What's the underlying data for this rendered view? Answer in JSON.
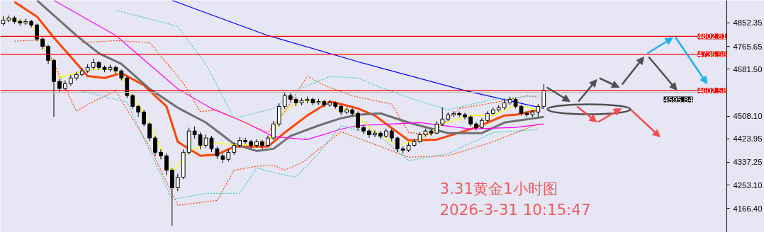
{
  "chart_data": {
    "type": "candlestick",
    "categories": [
      null,
      null,
      null,
      null,
      null,
      null,
      null,
      null,
      null,
      null,
      null,
      null,
      null,
      null,
      null,
      null,
      null,
      null,
      null,
      null,
      null,
      null,
      null,
      null,
      null,
      null,
      null,
      null,
      null,
      null,
      null,
      null,
      null,
      null,
      null,
      null,
      null,
      null,
      null,
      null,
      null,
      null,
      null,
      null,
      null,
      null,
      null,
      null,
      null,
      null,
      null,
      null,
      null,
      null,
      null,
      null,
      null,
      null,
      null,
      null,
      null,
      null,
      null,
      null,
      null,
      null,
      null,
      null,
      null,
      null,
      null,
      null,
      null,
      null,
      null,
      null,
      null,
      null,
      null,
      null,
      null,
      null,
      null,
      null,
      null,
      null,
      null,
      null,
      null,
      null,
      null,
      null,
      null,
      null,
      null,
      null,
      null,
      null,
      null,
      null,
      null,
      null,
      null,
      null,
      null,
      null,
      null,
      null,
      null,
      null,
      null,
      null,
      null,
      null,
      null,
      null,
      null,
      null,
      null,
      null,
      null,
      null,
      null,
      null,
      null,
      null,
      null,
      null,
      null
    ],
    "ohlc": [
      [
        4850,
        4878,
        4842,
        4863
      ],
      [
        4863,
        4880,
        4855,
        4871
      ],
      [
        4871,
        4878,
        4850,
        4858
      ],
      [
        4858,
        4866,
        4842,
        4852
      ],
      [
        4852,
        4868,
        4845,
        4858
      ],
      [
        4858,
        4864,
        4836,
        4845
      ],
      [
        4845,
        4850,
        4785,
        4793
      ],
      [
        4793,
        4800,
        4755,
        4766
      ],
      [
        4766,
        4772,
        4700,
        4714
      ],
      [
        4714,
        4720,
        4505,
        4636
      ],
      [
        4636,
        4645,
        4598,
        4610
      ],
      [
        4610,
        4640,
        4602,
        4628
      ],
      [
        4628,
        4660,
        4620,
        4649
      ],
      [
        4649,
        4672,
        4640,
        4662
      ],
      [
        4662,
        4685,
        4655,
        4675
      ],
      [
        4675,
        4700,
        4668,
        4688
      ],
      [
        4688,
        4720,
        4680,
        4706
      ],
      [
        4706,
        4712,
        4678,
        4688
      ],
      [
        4688,
        4695,
        4670,
        4680
      ],
      [
        4680,
        4698,
        4672,
        4688
      ],
      [
        4688,
        4695,
        4665,
        4675
      ],
      [
        4675,
        4680,
        4640,
        4649
      ],
      [
        4649,
        4655,
        4575,
        4584
      ],
      [
        4584,
        4590,
        4535,
        4544
      ],
      [
        4544,
        4550,
        4505,
        4523
      ],
      [
        4523,
        4530,
        4470,
        4479
      ],
      [
        4479,
        4485,
        4415,
        4427
      ],
      [
        4427,
        4435,
        4360,
        4374
      ],
      [
        4374,
        4385,
        4348,
        4361
      ],
      [
        4361,
        4370,
        4290,
        4308
      ],
      [
        4308,
        4315,
        4102,
        4243
      ],
      [
        4243,
        4295,
        4230,
        4282
      ],
      [
        4282,
        4385,
        4275,
        4374
      ],
      [
        4374,
        4465,
        4365,
        4453
      ],
      [
        4453,
        4470,
        4425,
        4439
      ],
      [
        4439,
        4448,
        4385,
        4400
      ],
      [
        4400,
        4440,
        4390,
        4427
      ],
      [
        4427,
        4435,
        4375,
        4387
      ],
      [
        4387,
        4395,
        4350,
        4361
      ],
      [
        4361,
        4370,
        4335,
        4348
      ],
      [
        4348,
        4385,
        4340,
        4374
      ],
      [
        4374,
        4410,
        4365,
        4400
      ],
      [
        4400,
        4430,
        4392,
        4418
      ],
      [
        4418,
        4428,
        4405,
        4413
      ],
      [
        4413,
        4420,
        4390,
        4400
      ],
      [
        4400,
        4422,
        4392,
        4413
      ],
      [
        4413,
        4420,
        4385,
        4400
      ],
      [
        4400,
        4436,
        4395,
        4427
      ],
      [
        4427,
        4490,
        4420,
        4479
      ],
      [
        4479,
        4555,
        4470,
        4544
      ],
      [
        4544,
        4595,
        4535,
        4584
      ],
      [
        4584,
        4592,
        4560,
        4570
      ],
      [
        4570,
        4578,
        4545,
        4557
      ],
      [
        4557,
        4575,
        4548,
        4565
      ],
      [
        4565,
        4580,
        4555,
        4570
      ],
      [
        4570,
        4576,
        4548,
        4557
      ],
      [
        4557,
        4572,
        4550,
        4562
      ],
      [
        4562,
        4568,
        4540,
        4549
      ],
      [
        4549,
        4566,
        4542,
        4557
      ],
      [
        4557,
        4562,
        4535,
        4544
      ],
      [
        4544,
        4550,
        4512,
        4523
      ],
      [
        4523,
        4540,
        4515,
        4531
      ],
      [
        4531,
        4538,
        4508,
        4518
      ],
      [
        4518,
        4525,
        4455,
        4466
      ],
      [
        4466,
        4475,
        4442,
        4453
      ],
      [
        4453,
        4460,
        4428,
        4439
      ],
      [
        4439,
        4455,
        4430,
        4445
      ],
      [
        4445,
        4452,
        4424,
        4434
      ],
      [
        4434,
        4462,
        4428,
        4453
      ],
      [
        4453,
        4460,
        4415,
        4427
      ],
      [
        4427,
        4432,
        4375,
        4387
      ],
      [
        4387,
        4395,
        4370,
        4382
      ],
      [
        4382,
        4410,
        4375,
        4400
      ],
      [
        4400,
        4422,
        4395,
        4413
      ],
      [
        4413,
        4448,
        4408,
        4439
      ],
      [
        4439,
        4462,
        4432,
        4453
      ],
      [
        4453,
        4460,
        4436,
        4445
      ],
      [
        4445,
        4490,
        4440,
        4479
      ],
      [
        4479,
        4540,
        4472,
        4497
      ],
      [
        4497,
        4522,
        4490,
        4513
      ],
      [
        4513,
        4526,
        4505,
        4518
      ],
      [
        4518,
        4525,
        4505,
        4513
      ],
      [
        4513,
        4520,
        4496,
        4505
      ],
      [
        4505,
        4510,
        4470,
        4479
      ],
      [
        4479,
        4486,
        4455,
        4466
      ],
      [
        4466,
        4500,
        4460,
        4492
      ],
      [
        4492,
        4526,
        4485,
        4518
      ],
      [
        4518,
        4540,
        4512,
        4531
      ],
      [
        4531,
        4548,
        4525,
        4539
      ],
      [
        4539,
        4568,
        4532,
        4557
      ],
      [
        4557,
        4580,
        4550,
        4570
      ],
      [
        4570,
        4575,
        4536,
        4544
      ],
      [
        4544,
        4550,
        4510,
        4518
      ],
      [
        4518,
        4524,
        4505,
        4513
      ],
      [
        4513,
        4530,
        4505,
        4523
      ],
      [
        4523,
        4552,
        4505,
        4544
      ],
      [
        4544,
        4626,
        4538,
        4602
      ],
      null,
      null,
      null,
      null,
      null,
      null,
      null,
      null,
      null,
      null,
      null,
      null,
      null,
      null,
      null,
      null,
      null,
      null,
      null,
      null,
      null,
      null,
      null,
      null,
      null,
      null,
      null,
      null,
      null,
      null,
      null,
      null
    ],
    "series": [
      {
        "type": "line",
        "color": "#ff4500",
        "values": [
          null,
          null,
          4930,
          null,
          null,
          null,
          4876,
          null,
          null,
          4798,
          null,
          null,
          null,
          null,
          null,
          4656,
          null,
          null,
          4649,
          null,
          null,
          4667,
          null,
          null,
          null,
          4622,
          null,
          null,
          null,
          4544,
          null,
          4413,
          null,
          null,
          null,
          4361,
          null,
          null,
          4366,
          null,
          null,
          4395,
          null,
          null,
          null,
          null,
          null,
          4395,
          null,
          null,
          4447,
          null,
          null,
          null,
          4510,
          null,
          null,
          null,
          4562,
          null,
          4552,
          null,
          null,
          4536,
          null,
          null,
          4510,
          null,
          null,
          null,
          null,
          null,
          4418,
          null,
          null,
          null,
          null,
          4421,
          null,
          null,
          null,
          null,
          null,
          null,
          4466,
          null,
          null,
          null,
          null,
          4510,
          null,
          4513,
          null,
          null,
          null,
          4531,
          null,
          null,
          null,
          null,
          null,
          null,
          null,
          null,
          null,
          null,
          null,
          null,
          null,
          null,
          null,
          null,
          null,
          null,
          null,
          null,
          null,
          null,
          null,
          null,
          null,
          null,
          null,
          null,
          null,
          null,
          null,
          null,
          null
        ]
      },
      {
        "type": "line",
        "color": "#707070",
        "values": [
          null,
          null,
          null,
          null,
          null,
          null,
          4936,
          null,
          null,
          null,
          null,
          null,
          null,
          4806,
          null,
          null,
          null,
          4740,
          null,
          null,
          null,
          4701,
          null,
          null,
          null,
          null,
          4609,
          null,
          null,
          null,
          null,
          4539,
          null,
          null,
          null,
          null,
          4484,
          null,
          null,
          null,
          null,
          4405,
          null,
          null,
          null,
          4379,
          null,
          null,
          4387,
          null,
          null,
          4434,
          null,
          null,
          null,
          null,
          4473,
          null,
          null,
          null,
          4500,
          null,
          null,
          4513,
          null,
          null,
          null,
          4518,
          null,
          null,
          null,
          null,
          4484,
          null,
          null,
          null,
          null,
          null,
          null,
          4445,
          null,
          null,
          null,
          null,
          null,
          4445,
          null,
          null,
          null,
          4484,
          null,
          null,
          null,
          null,
          null,
          null,
          4505,
          null,
          null,
          null,
          null,
          null,
          null,
          null,
          null,
          null,
          null,
          null,
          null,
          null,
          null,
          null,
          null,
          null,
          null,
          null,
          null,
          null,
          null,
          null,
          null,
          null,
          null,
          null,
          null,
          null,
          null,
          null,
          null
        ]
      },
      {
        "type": "line",
        "color": "#ff00ff",
        "values": [
          null,
          null,
          null,
          null,
          null,
          null,
          null,
          null,
          null,
          4936,
          null,
          null,
          null,
          null,
          null,
          null,
          null,
          null,
          null,
          null,
          4806,
          null,
          null,
          null,
          null,
          null,
          null,
          null,
          null,
          null,
          null,
          4609,
          null,
          null,
          null,
          null,
          null,
          4536,
          null,
          null,
          null,
          null,
          null,
          4484,
          null,
          null,
          null,
          null,
          4432,
          null,
          null,
          null,
          null,
          null,
          4421,
          null,
          null,
          null,
          null,
          null,
          4460,
          null,
          null,
          4473,
          null,
          null,
          null,
          null,
          null,
          null,
          null,
          null,
          null,
          null,
          4484,
          null,
          null,
          null,
          null,
          null,
          null,
          null,
          null,
          4460,
          null,
          null,
          null,
          null,
          null,
          null,
          null,
          4466,
          null,
          null,
          null,
          null,
          4479,
          null,
          null,
          null,
          null,
          null,
          null,
          null,
          null,
          null,
          null,
          null,
          null,
          null,
          null,
          null,
          null,
          null,
          null,
          null,
          null,
          null,
          null,
          null,
          null,
          null,
          null,
          null,
          null,
          null,
          null,
          null,
          null
        ]
      },
      {
        "type": "line",
        "color": "#0000ff",
        "values": [
          null,
          null,
          null,
          null,
          null,
          null,
          null,
          null,
          null,
          null,
          null,
          null,
          null,
          null,
          null,
          null,
          null,
          null,
          null,
          null,
          null,
          null,
          null,
          null,
          null,
          null,
          null,
          null,
          null,
          null,
          4936,
          null,
          null,
          null,
          null,
          null,
          null,
          null,
          null,
          null,
          null,
          null,
          null,
          null,
          null,
          null,
          null,
          4806,
          null,
          null,
          null,
          null,
          null,
          null,
          null,
          null,
          null,
          null,
          null,
          null,
          null,
          null,
          null,
          4709,
          null,
          null,
          null,
          null,
          null,
          null,
          null,
          null,
          null,
          null,
          null,
          null,
          null,
          null,
          null,
          null,
          null,
          null,
          4602,
          null,
          null,
          null,
          null,
          null,
          null,
          null,
          null,
          null,
          null,
          null,
          null,
          null,
          4536,
          null,
          null,
          null,
          null,
          null,
          null,
          null,
          null,
          null,
          null,
          null,
          null,
          null,
          null,
          null,
          null,
          null,
          null,
          null,
          null,
          null,
          null,
          null,
          null,
          null,
          null,
          null,
          null,
          null,
          null,
          null,
          null
        ]
      },
      {
        "type": "line",
        "color": "#ffff00",
        "values": [
          4870,
          null,
          null,
          null,
          null,
          4850,
          null,
          null,
          null,
          null,
          4650,
          null,
          null,
          null,
          null,
          4680,
          null,
          null,
          null,
          null,
          4680,
          null,
          null,
          null,
          null,
          4520,
          null,
          null,
          null,
          null,
          4300,
          null,
          null,
          4380,
          null,
          null,
          null,
          4410,
          null,
          null,
          null,
          null,
          4400,
          null,
          null,
          null,
          null,
          4410,
          null,
          null,
          4530,
          null,
          null,
          4565,
          null,
          null,
          null,
          4560,
          null,
          null,
          null,
          null,
          4525,
          null,
          null,
          null,
          4450,
          null,
          null,
          null,
          4400,
          null,
          null,
          null,
          4420,
          null,
          null,
          null,
          4480,
          null,
          null,
          null,
          null,
          4510,
          null,
          null,
          null,
          4510,
          null,
          null,
          null,
          4550,
          null,
          null,
          null,
          4530,
          4550,
          null,
          null,
          null,
          null,
          null,
          null,
          null,
          null,
          null,
          null,
          null,
          null,
          null,
          null,
          null,
          null,
          null,
          null,
          null,
          null,
          null,
          null,
          null,
          null,
          null,
          null,
          null,
          null,
          null,
          null,
          null,
          null
        ]
      },
      {
        "type": "line",
        "color": "#ff4500",
        "line_style": "dashed",
        "values": [
          null,
          null,
          null,
          null,
          null,
          null,
          null,
          null,
          null,
          null,
          null,
          null,
          null,
          null,
          4780,
          null,
          null,
          null,
          null,
          null,
          4787,
          null,
          null,
          null,
          null,
          null,
          4780,
          null,
          null,
          null,
          null,
          null,
          4630,
          null,
          null,
          4525,
          null,
          null,
          4530,
          null,
          null,
          null,
          null,
          4484,
          null,
          null,
          null,
          4447,
          null,
          null,
          4525,
          null,
          null,
          null,
          4656,
          null,
          null,
          4622,
          null,
          null,
          null,
          null,
          4583,
          null,
          null,
          null,
          null,
          null,
          null,
          4552,
          null,
          null,
          4447,
          null,
          null,
          null,
          4439,
          null,
          null,
          null,
          null,
          4536,
          null,
          null,
          null,
          null,
          null,
          4557,
          null,
          null,
          null,
          null,
          null,
          4583,
          null,
          4578,
          null,
          null,
          null,
          null,
          null,
          null,
          null,
          null,
          null,
          null,
          null,
          null,
          null,
          null,
          null,
          null,
          null,
          null,
          null,
          null,
          null,
          null,
          null,
          null,
          null,
          null,
          null,
          null,
          null,
          null,
          null,
          null,
          null
        ]
      },
      {
        "type": "line",
        "color": "#ff4500",
        "line_style": "dashed",
        "values": [
          null,
          null,
          4785,
          null,
          null,
          null,
          null,
          4790,
          null,
          null,
          null,
          null,
          null,
          4526,
          null,
          null,
          4562,
          null,
          null,
          null,
          4601,
          null,
          null,
          null,
          null,
          null,
          4395,
          null,
          null,
          null,
          null,
          4178,
          null,
          null,
          null,
          null,
          null,
          null,
          4196,
          null,
          null,
          4308,
          null,
          null,
          null,
          4322,
          null,
          null,
          4327,
          null,
          4308,
          null,
          null,
          4335,
          null,
          null,
          null,
          null,
          null,
          null,
          4450,
          null,
          null,
          null,
          null,
          null,
          null,
          4395,
          null,
          null,
          null,
          null,
          4356,
          null,
          null,
          null,
          null,
          null,
          null,
          4361,
          null,
          null,
          null,
          null,
          null,
          null,
          null,
          4413,
          null,
          null,
          null,
          null,
          null,
          null,
          null,
          4479,
          null,
          null,
          null,
          null,
          null,
          null,
          null,
          null,
          null,
          null,
          null,
          null,
          null,
          null,
          null,
          null,
          null,
          null,
          null,
          null,
          null,
          null,
          null,
          null,
          null,
          null,
          null,
          null,
          null,
          null,
          null,
          null,
          null
        ]
      },
      {
        "type": "line",
        "color": "#40c8c8",
        "line_style": "dashed",
        "values": [
          null,
          null,
          null,
          null,
          null,
          null,
          null,
          null,
          null,
          null,
          null,
          null,
          null,
          null,
          null,
          null,
          null,
          null,
          null,
          null,
          4900,
          null,
          null,
          null,
          null,
          null,
          null,
          null,
          null,
          null,
          null,
          4840,
          null,
          null,
          null,
          null,
          4700,
          null,
          null,
          null,
          null,
          4500,
          null,
          null,
          null,
          null,
          null,
          null,
          4536,
          null,
          null,
          null,
          4604,
          null,
          null,
          null,
          null,
          null,
          4654,
          null,
          null,
          null,
          null,
          4649,
          null,
          null,
          4622,
          null,
          null,
          null,
          null,
          null,
          null,
          null,
          4562,
          null,
          null,
          null,
          null,
          4531,
          null,
          null,
          null,
          null,
          null,
          null,
          null,
          4570,
          null,
          null,
          null,
          null,
          null,
          null,
          null,
          4583,
          null,
          null,
          null,
          null,
          null,
          null,
          null,
          null,
          null,
          null,
          null,
          null,
          null,
          null,
          null,
          null,
          null,
          null,
          null,
          null,
          null,
          null,
          null,
          null,
          null,
          null,
          null,
          null,
          null,
          null,
          null,
          null,
          null
        ]
      },
      {
        "type": "line",
        "color": "#40c8c8",
        "line_style": "dashed",
        "values": [
          null,
          null,
          null,
          null,
          null,
          null,
          null,
          null,
          null,
          null,
          null,
          null,
          null,
          null,
          4600,
          null,
          null,
          null,
          null,
          null,
          null,
          null,
          4560,
          null,
          null,
          null,
          null,
          null,
          null,
          null,
          4200,
          null,
          null,
          null,
          null,
          null,
          4222,
          null,
          null,
          null,
          null,
          null,
          4222,
          null,
          null,
          4316,
          null,
          null,
          null,
          null,
          4290,
          null,
          4282,
          null,
          null,
          null,
          4369,
          null,
          null,
          null,
          4473,
          null,
          null,
          null,
          null,
          null,
          null,
          4432,
          null,
          null,
          null,
          null,
          4343,
          null,
          null,
          null,
          null,
          null,
          null,
          4369,
          null,
          null,
          null,
          null,
          null,
          null,
          null,
          4447,
          null,
          null,
          null,
          null,
          null,
          null,
          null,
          4458,
          null,
          null,
          null,
          null,
          null,
          null,
          null,
          null,
          null,
          null,
          null,
          null,
          null,
          null,
          null,
          null,
          null,
          null,
          null,
          null,
          null,
          null,
          null,
          null,
          null,
          null,
          null,
          null,
          null,
          null,
          null,
          null,
          null
        ]
      }
    ],
    "ylim": [
      4078,
      4936
    ],
    "yticks": [
      {
        "value": 4166.4,
        "label": "4166.40"
      },
      {
        "value": 4253.1,
        "label": "4253.10"
      },
      4337.25,
      4423.95,
      {
        "value": 4508.1,
        "label": "4508.10"
      },
      {
        "value": 4681.5,
        "label": "4681.50"
      },
      4765.65,
      4852.35
    ],
    "tick_labels": "y",
    "ref_lines": [
      {
        "axis": "y",
        "value": 4802.81,
        "label": "4802.81",
        "color": "#ff0000"
      },
      {
        "axis": "y",
        "value": 4736.98,
        "label": "4736.98",
        "color": "#ff0000"
      },
      {
        "axis": "y",
        "value": 4602.58,
        "label": "4602.58",
        "color": "#ff0000"
      },
      {
        "axis": "y",
        "value": 4595.84,
        "label": "4595.84",
        "color": "#c0c0c0"
      }
    ],
    "annotations": [
      "3.31黄金1小时图",
      "2026-3-31 10:15:47"
    ],
    "grid": false
  }
}
